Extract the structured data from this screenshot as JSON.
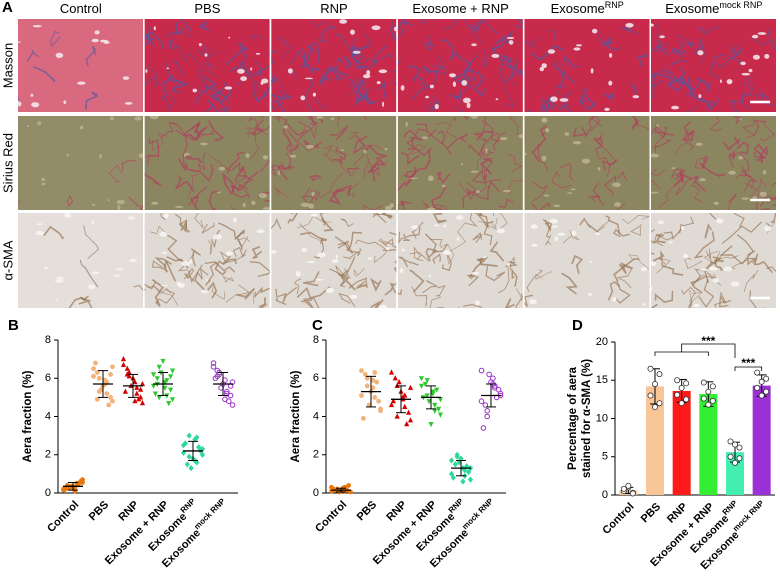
{
  "panel_a": {
    "label": "A",
    "columns": [
      "Control",
      "PBS",
      "RNP",
      "Exosome + RNP",
      "Exosome",
      "Exosome"
    ],
    "column_superscripts": [
      null,
      null,
      null,
      null,
      "RNP",
      "mock RNP"
    ],
    "rows": [
      "Masson",
      "Sirius Red",
      "α-SMA"
    ]
  },
  "chart_data": [
    {
      "type": "dot",
      "panel": "B",
      "ylabel": "Aera fraction (%)",
      "categories": [
        "Control",
        "PBS",
        "RNP",
        "Exosome + RNP",
        "Exosome",
        "Exosome"
      ],
      "category_superscripts": [
        null,
        null,
        null,
        null,
        "RNP",
        "mock RNP"
      ],
      "colors": [
        "#e8780f",
        "#f2b27a",
        "#d40000",
        "#2fc92f",
        "#2fd89a",
        "#9a32c8"
      ],
      "markers": [
        "circle",
        "circle",
        "triangle",
        "triangle-down",
        "diamond",
        "circle-open"
      ],
      "points": [
        [
          0.2,
          0.5,
          0.3,
          0.7,
          0.1,
          0.4,
          0.6,
          0.3,
          0.2,
          0.5,
          0.35,
          0.15,
          0.45,
          0.25,
          0.55,
          0.3
        ],
        [
          6.5,
          5.2,
          6.0,
          4.8,
          5.9,
          6.3,
          5.0,
          5.6,
          6.8,
          4.6,
          5.4,
          6.1,
          5.8,
          5.3,
          6.6,
          5.7,
          4.9,
          6.2
        ],
        [
          7.0,
          5.5,
          6.3,
          4.7,
          5.8,
          6.5,
          5.0,
          6.0,
          5.3,
          4.9,
          5.6,
          6.7,
          5.2,
          6.1,
          5.7,
          4.8,
          6.2,
          5.4
        ],
        [
          6.2,
          5.1,
          6.6,
          4.9,
          5.8,
          6.0,
          5.4,
          6.9,
          5.2,
          4.7,
          6.3,
          5.6,
          5.9,
          5.0,
          6.4,
          5.5,
          5.7,
          6.1
        ],
        [
          2.5,
          1.6,
          3.0,
          2.0,
          2.8,
          1.5,
          2.2,
          1.8,
          2.6,
          2.4,
          1.3,
          2.1,
          2.9,
          1.9,
          2.3,
          1.7
        ],
        [
          6.6,
          5.3,
          6.2,
          4.6,
          5.9,
          6.4,
          5.1,
          5.7,
          6.0,
          4.8,
          5.5,
          6.8,
          5.2,
          6.3,
          5.8,
          4.9,
          6.1,
          5.6
        ]
      ],
      "means": [
        0.35,
        5.7,
        5.6,
        5.7,
        2.2,
        5.7
      ],
      "sds": [
        0.2,
        0.7,
        0.6,
        0.6,
        0.5,
        0.6
      ],
      "ylim": [
        0,
        8
      ],
      "yticks": [
        0,
        2,
        4,
        6,
        8
      ]
    },
    {
      "type": "dot",
      "panel": "C",
      "ylabel": "Aera fraction (%)",
      "categories": [
        "Control",
        "PBS",
        "RNP",
        "Exosome + RNP",
        "Exosome",
        "Exosome"
      ],
      "category_superscripts": [
        null,
        null,
        null,
        null,
        "RNP",
        "mock RNP"
      ],
      "colors": [
        "#e8780f",
        "#f2b27a",
        "#d40000",
        "#2fc92f",
        "#2fd89a",
        "#9a32c8"
      ],
      "markers": [
        "circle",
        "circle",
        "triangle",
        "triangle-down",
        "diamond",
        "circle-open"
      ],
      "points": [
        [
          0.1,
          0.3,
          0.2,
          0.05,
          0.25,
          0.15,
          0.4,
          0.1,
          0.2,
          0.15,
          0.05,
          0.3,
          0.1,
          0.2
        ],
        [
          6.4,
          5.0,
          6.0,
          4.3,
          5.5,
          6.2,
          4.8,
          5.3,
          3.9,
          5.8,
          4.6,
          5.1,
          6.3,
          5.6,
          4.4,
          5.9
        ],
        [
          6.3,
          4.5,
          5.6,
          3.8,
          5.0,
          6.0,
          4.2,
          5.3,
          4.8,
          3.6,
          5.8,
          4.6,
          5.1,
          4.0,
          5.5,
          4.9
        ],
        [
          5.6,
          4.6,
          5.9,
          4.1,
          5.2,
          5.7,
          4.4,
          3.6,
          5.0,
          5.4,
          4.8,
          6.0,
          4.3,
          5.1,
          4.9,
          5.3
        ],
        [
          1.7,
          0.9,
          2.0,
          1.3,
          0.6,
          1.5,
          1.1,
          1.8,
          0.8,
          1.4,
          1.6,
          1.0,
          1.2,
          1.9,
          0.7,
          1.3
        ],
        [
          6.4,
          5.6,
          4.0,
          5.2,
          6.0,
          4.6,
          5.4,
          5.8,
          3.4,
          5.0,
          6.2,
          4.8,
          5.5,
          4.3,
          5.1,
          5.7
        ]
      ],
      "means": [
        0.15,
        5.3,
        4.9,
        5.0,
        1.3,
        5.1
      ],
      "sds": [
        0.1,
        0.8,
        0.7,
        0.6,
        0.4,
        0.6
      ],
      "ylim": [
        0,
        8
      ],
      "yticks": [
        0,
        2,
        4,
        6,
        8
      ]
    },
    {
      "type": "bar",
      "panel": "D",
      "ylabel": [
        "Percentage of aera",
        "stained for α-SMA (%)"
      ],
      "categories": [
        "Control",
        "PBS",
        "RNP",
        "Exosome + RNP",
        "Exosome",
        "Exosome"
      ],
      "category_superscripts": [
        null,
        null,
        null,
        null,
        "RNP",
        "mock RNP"
      ],
      "colors": [
        "#f7c596",
        "#f7c596",
        "#ff1a1a",
        "#33ee33",
        "#44eeb0",
        "#9b30d6"
      ],
      "values": [
        0.6,
        14.2,
        13.6,
        13.2,
        5.6,
        14.3
      ],
      "errors": [
        0.4,
        2.3,
        1.5,
        1.6,
        1.3,
        1.4
      ],
      "points": [
        [
          0.5,
          1.0,
          0.3,
          0.8,
          1.2,
          0.2
        ],
        [
          16.5,
          11.5,
          15.8,
          13.0,
          14.5,
          12.0
        ],
        [
          15.0,
          12.0,
          14.6,
          13.1,
          14.0,
          12.5
        ],
        [
          14.7,
          11.8,
          14.2,
          12.6,
          13.5,
          12.3
        ],
        [
          7.0,
          4.2,
          6.2,
          5.0,
          6.6,
          4.8
        ],
        [
          16.0,
          13.0,
          15.2,
          14.0,
          14.8,
          13.5
        ]
      ],
      "comparisons": [
        {
          "text": "***"
        },
        {
          "text": "***"
        }
      ],
      "ylim": [
        0,
        20
      ],
      "yticks": [
        0,
        5,
        10,
        15,
        20
      ]
    }
  ]
}
